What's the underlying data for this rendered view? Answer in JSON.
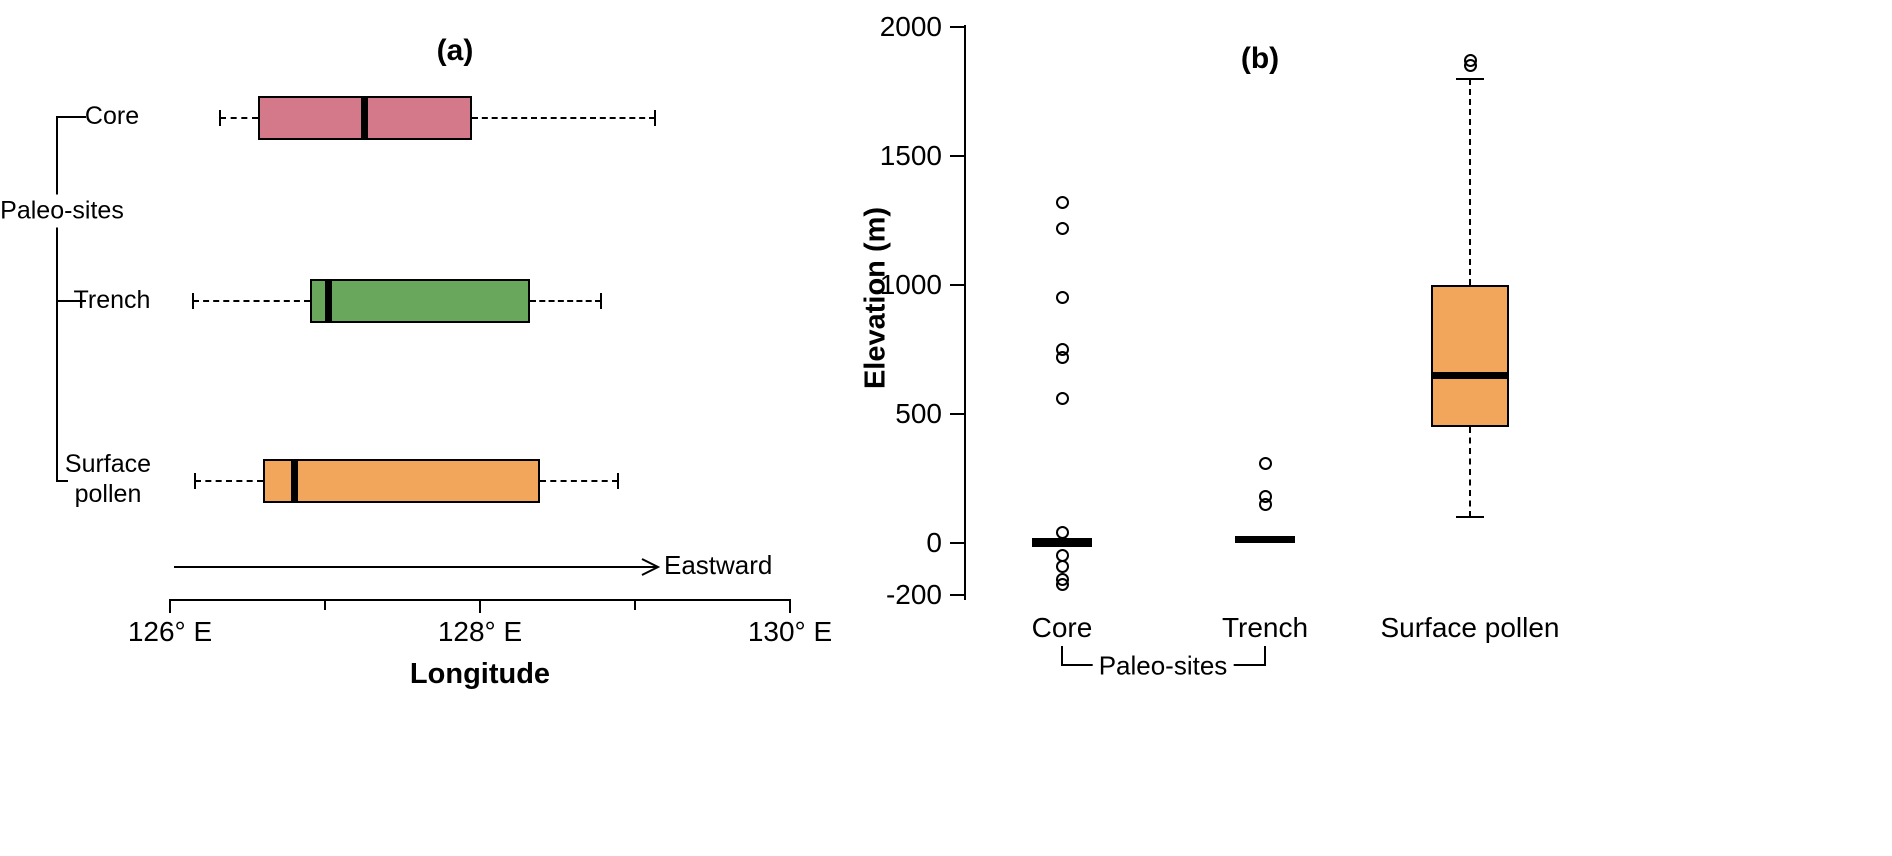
{
  "figure": {
    "background": "#ffffff"
  },
  "chart_data": [
    {
      "id": "a",
      "type": "boxplot",
      "orientation": "horizontal",
      "title": "(a)",
      "xlabel": "Longitude",
      "xlim": [
        126,
        130
      ],
      "x_major_ticks": [
        {
          "value": 126,
          "label": "126° E"
        },
        {
          "value": 128,
          "label": "128° E"
        },
        {
          "value": 130,
          "label": "130° E"
        }
      ],
      "x_minor_ticks": [
        127,
        129
      ],
      "annotation": {
        "type": "arrow-right",
        "label": "Eastward"
      },
      "group_bracket": {
        "label": "Paleo-sites",
        "categories": [
          "Core",
          "Trench"
        ]
      },
      "series": [
        {
          "category": "Core",
          "color": "#d4798a",
          "whisker_low": 126.32,
          "q1": 126.57,
          "median": 127.25,
          "q3": 127.95,
          "whisker_high": 129.13
        },
        {
          "category": "Trench",
          "color": "#69a85c",
          "whisker_low": 126.15,
          "q1": 126.9,
          "median": 127.02,
          "q3": 128.32,
          "whisker_high": 128.78
        },
        {
          "category": "Surface pollen",
          "color": "#f2a65c",
          "whisker_low": 126.16,
          "q1": 126.6,
          "median": 126.8,
          "q3": 128.39,
          "whisker_high": 128.89
        }
      ]
    },
    {
      "id": "b",
      "type": "boxplot",
      "orientation": "vertical",
      "title": "(b)",
      "ylabel": "Elevation (m)",
      "ylim": [
        -200,
        2000
      ],
      "y_ticks": [
        -200,
        0,
        500,
        1000,
        1500,
        2000
      ],
      "group_bracket": {
        "label": "Paleo-sites",
        "categories": [
          "Core",
          "Trench"
        ]
      },
      "series": [
        {
          "category": "Core",
          "color": "#000000",
          "whisker_low": -15,
          "q1": -15,
          "median": 0,
          "q3": 20,
          "whisker_high": 20,
          "outliers": [
            1320,
            1220,
            950,
            750,
            720,
            560,
            40,
            -50,
            -90,
            -140,
            -160
          ]
        },
        {
          "category": "Trench",
          "color": "#000000",
          "whisker_low": 5,
          "q1": 5,
          "median": 15,
          "q3": 25,
          "whisker_high": 25,
          "outliers": [
            310,
            180,
            150
          ]
        },
        {
          "category": "Surface pollen",
          "color": "#f2a65c",
          "whisker_low": 100,
          "q1": 450,
          "median": 650,
          "q3": 1000,
          "whisker_high": 1800,
          "outliers": [
            1850,
            1870
          ]
        }
      ]
    }
  ]
}
